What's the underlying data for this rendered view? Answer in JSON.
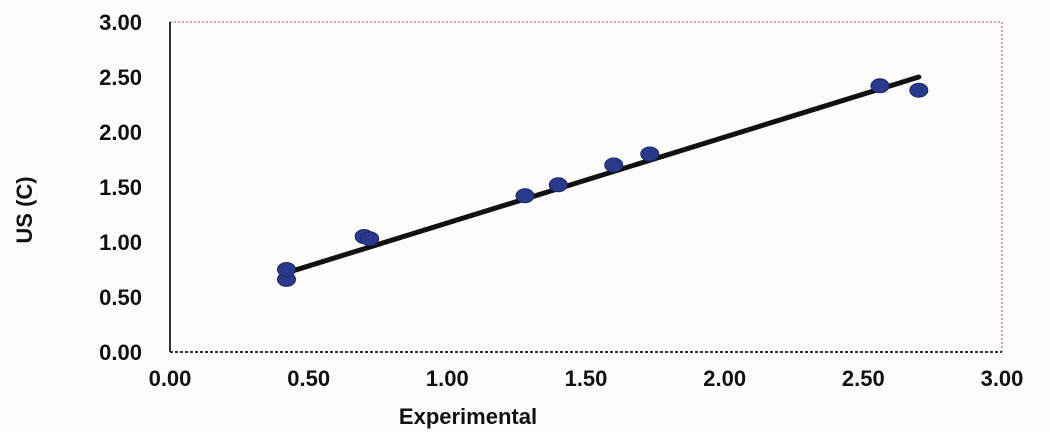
{
  "chart_data": {
    "type": "scatter",
    "title": "",
    "xlabel": "Experimental",
    "ylabel": "US (C)",
    "xlim": [
      0.0,
      3.0
    ],
    "ylim": [
      0.0,
      3.0
    ],
    "x_ticks": [
      "0.00",
      "0.50",
      "1.00",
      "1.50",
      "2.00",
      "2.50",
      "3.00"
    ],
    "y_ticks": [
      "0.00",
      "0.50",
      "1.00",
      "1.50",
      "2.00",
      "2.50",
      "3.00"
    ],
    "grid": false,
    "legend": "none",
    "series": [
      {
        "x": [
          0.42,
          0.42,
          0.7,
          0.72,
          1.28,
          1.4,
          1.6,
          1.73,
          2.56,
          2.7
        ],
        "y": [
          0.66,
          0.75,
          1.05,
          1.03,
          1.42,
          1.52,
          1.7,
          1.8,
          2.42,
          2.38
        ]
      }
    ],
    "trendline": {
      "x": [
        0.42,
        2.7
      ],
      "y": [
        0.72,
        2.5
      ]
    },
    "colors": {
      "points": "#2a3a8a",
      "line": "#111111",
      "axes": "#333333",
      "frame": "#c9a9a3"
    }
  }
}
